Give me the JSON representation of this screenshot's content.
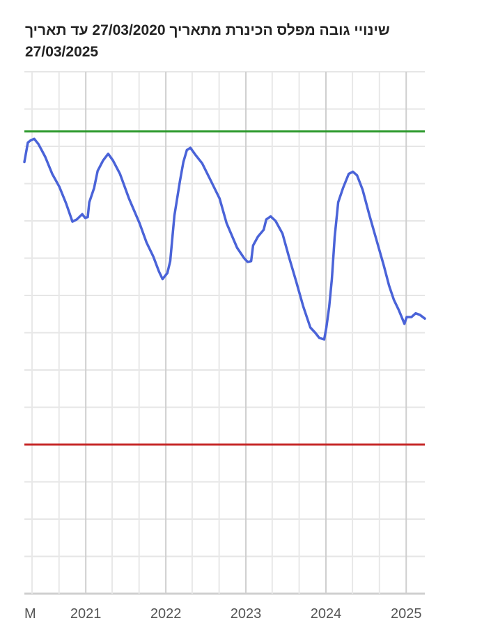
{
  "chart_data": {
    "type": "line",
    "title": "שינויי גובה מפלס הכינרת מתאריך 27/03/2020 עד תאריך 27/03/2025",
    "xlabel": "",
    "ylabel": "",
    "xlim": [
      "2020-03-27",
      "2025-03-27"
    ],
    "ylim": [
      -215.0,
      -208.0
    ],
    "y_grid_step": 0.5,
    "x_grid_step_months": 4,
    "grid": true,
    "legend": "none",
    "x_tick_labels": [
      {
        "date": "2020-05-01",
        "label": "M"
      },
      {
        "date": "2021-01-01",
        "label": "2021"
      },
      {
        "date": "2022-01-01",
        "label": "2022"
      },
      {
        "date": "2023-01-01",
        "label": "2023"
      },
      {
        "date": "2024-01-01",
        "label": "2024"
      },
      {
        "date": "2025-01-01",
        "label": "2025"
      }
    ],
    "reference_lines": [
      {
        "value": -208.8,
        "color": "#2e9a2e"
      },
      {
        "value": -213.0,
        "color": "#c62828"
      }
    ],
    "series": [
      {
        "color": "#4a63d8",
        "points": [
          [
            "2020-03-27",
            -209.21
          ],
          [
            "2020-04-12",
            -208.95
          ],
          [
            "2020-04-25",
            -208.92
          ],
          [
            "2020-05-11",
            -208.9
          ],
          [
            "2020-05-30",
            -208.97
          ],
          [
            "2020-06-30",
            -209.14
          ],
          [
            "2020-08-01",
            -209.37
          ],
          [
            "2020-09-02",
            -209.54
          ],
          [
            "2020-10-04",
            -209.77
          ],
          [
            "2020-11-01",
            -210.01
          ],
          [
            "2020-11-21",
            -209.98
          ],
          [
            "2020-12-16",
            -209.91
          ],
          [
            "2020-12-29",
            -209.96
          ],
          [
            "2021-01-10",
            -209.95
          ],
          [
            "2021-01-17",
            -209.75
          ],
          [
            "2021-02-08",
            -209.56
          ],
          [
            "2021-02-24",
            -209.33
          ],
          [
            "2021-03-21",
            -209.19
          ],
          [
            "2021-04-13",
            -209.1
          ],
          [
            "2021-05-05",
            -209.19
          ],
          [
            "2021-06-06",
            -209.37
          ],
          [
            "2021-07-17",
            -209.7
          ],
          [
            "2021-09-03",
            -210.03
          ],
          [
            "2021-10-05",
            -210.29
          ],
          [
            "2021-11-05",
            -210.48
          ],
          [
            "2021-12-01",
            -210.68
          ],
          [
            "2021-12-17",
            -210.78
          ],
          [
            "2022-01-08",
            -210.7
          ],
          [
            "2022-01-21",
            -210.54
          ],
          [
            "2022-02-09",
            -209.93
          ],
          [
            "2022-03-06",
            -209.47
          ],
          [
            "2022-03-22",
            -209.21
          ],
          [
            "2022-04-07",
            -209.05
          ],
          [
            "2022-04-23",
            -209.02
          ],
          [
            "2022-05-15",
            -209.11
          ],
          [
            "2022-06-16",
            -209.23
          ],
          [
            "2022-07-18",
            -209.42
          ],
          [
            "2022-09-03",
            -209.7
          ],
          [
            "2022-10-05",
            -210.03
          ],
          [
            "2022-11-22",
            -210.36
          ],
          [
            "2022-12-24",
            -210.5
          ],
          [
            "2023-01-09",
            -210.55
          ],
          [
            "2023-01-25",
            -210.54
          ],
          [
            "2023-02-03",
            -210.33
          ],
          [
            "2023-02-25",
            -210.21
          ],
          [
            "2023-03-23",
            -210.12
          ],
          [
            "2023-04-04",
            -209.98
          ],
          [
            "2023-04-24",
            -209.94
          ],
          [
            "2023-05-16",
            -210.0
          ],
          [
            "2023-06-17",
            -210.17
          ],
          [
            "2023-07-18",
            -210.5
          ],
          [
            "2023-08-19",
            -210.82
          ],
          [
            "2023-09-20",
            -211.15
          ],
          [
            "2023-10-22",
            -211.43
          ],
          [
            "2023-11-13",
            -211.5
          ],
          [
            "2023-12-02",
            -211.57
          ],
          [
            "2023-12-24",
            -211.59
          ],
          [
            "2024-01-03",
            -211.43
          ],
          [
            "2024-01-16",
            -211.15
          ],
          [
            "2024-01-28",
            -210.78
          ],
          [
            "2024-02-10",
            -210.21
          ],
          [
            "2024-02-26",
            -209.75
          ],
          [
            "2024-03-19",
            -209.56
          ],
          [
            "2024-04-14",
            -209.37
          ],
          [
            "2024-05-03",
            -209.34
          ],
          [
            "2024-05-22",
            -209.39
          ],
          [
            "2024-06-16",
            -209.58
          ],
          [
            "2024-07-18",
            -209.93
          ],
          [
            "2024-08-19",
            -210.26
          ],
          [
            "2024-09-20",
            -210.59
          ],
          [
            "2024-10-15",
            -210.87
          ],
          [
            "2024-11-06",
            -211.06
          ],
          [
            "2024-11-29",
            -211.2
          ],
          [
            "2024-12-24",
            -211.38
          ],
          [
            "2025-01-03",
            -211.29
          ],
          [
            "2025-01-25",
            -211.29
          ],
          [
            "2025-02-13",
            -211.24
          ],
          [
            "2025-03-04",
            -211.26
          ],
          [
            "2025-03-27",
            -211.31
          ]
        ]
      }
    ]
  }
}
